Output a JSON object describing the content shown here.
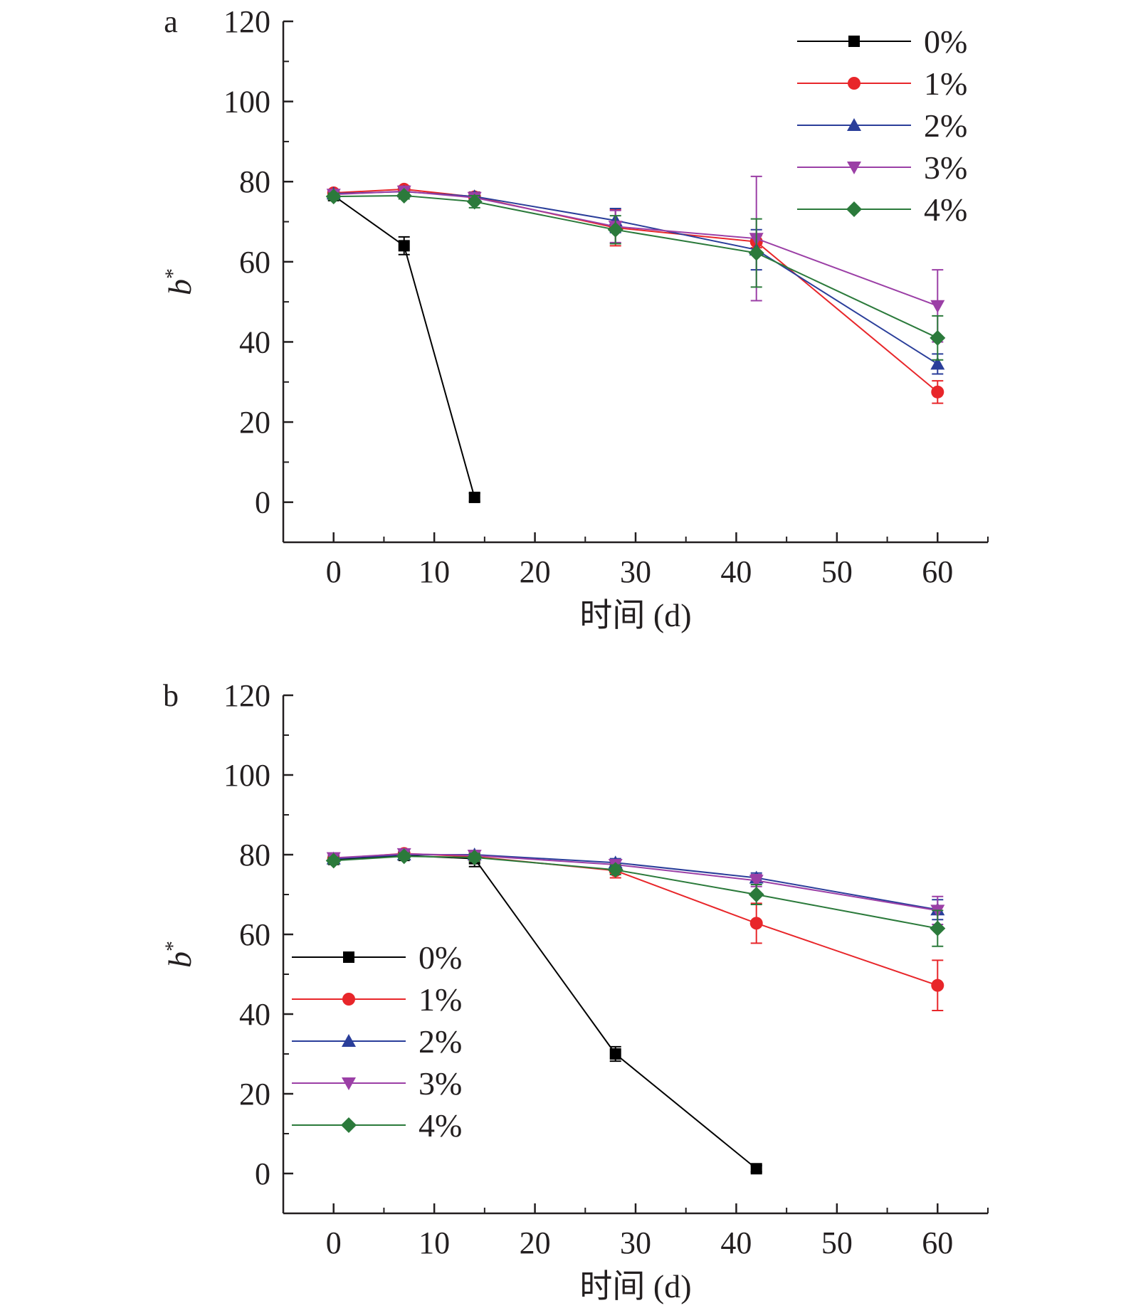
{
  "chart_data": [
    {
      "type": "line",
      "panel_label": "a",
      "xlabel": "时间 (d)",
      "ylabel_main": "b",
      "ylabel_sup": "*",
      "xlim": [
        -5,
        65
      ],
      "ylim": [
        -10,
        120
      ],
      "xticks": [
        0,
        10,
        20,
        30,
        40,
        50,
        60
      ],
      "yticks": [
        0,
        20,
        40,
        60,
        80,
        100,
        120
      ],
      "legend_position": "top-right",
      "series": [
        {
          "name": "0%",
          "color": "#000000",
          "marker": "square",
          "x": [
            0,
            7,
            14
          ],
          "y": [
            76.5,
            64,
            1.2
          ],
          "err": [
            0.8,
            2.2,
            1.0
          ]
        },
        {
          "name": "1%",
          "color": "#e8262a",
          "marker": "circle",
          "x": [
            0,
            7,
            14,
            28,
            42,
            60
          ],
          "y": [
            77.2,
            78.1,
            76.2,
            68.5,
            65.0,
            27.5
          ],
          "err": [
            0.8,
            0.8,
            1.2,
            4.5,
            1.5,
            2.8
          ]
        },
        {
          "name": "2%",
          "color": "#2a3e9a",
          "marker": "triangle-up",
          "x": [
            0,
            7,
            14,
            28,
            42,
            60
          ],
          "y": [
            77.0,
            77.5,
            76.3,
            70.3,
            63.0,
            34.5
          ],
          "err": [
            0.8,
            0.8,
            1.0,
            3.0,
            5.0,
            2.5
          ]
        },
        {
          "name": "3%",
          "color": "#9b3fa6",
          "marker": "triangle-down",
          "x": [
            0,
            7,
            14,
            28,
            42,
            60
          ],
          "y": [
            76.8,
            77.6,
            76.0,
            68.8,
            65.8,
            49.0
          ],
          "err": [
            0.8,
            0.8,
            1.0,
            4.0,
            15.5,
            9.0
          ]
        },
        {
          "name": "4%",
          "color": "#2b7a3b",
          "marker": "diamond",
          "x": [
            0,
            7,
            14,
            28,
            42,
            60
          ],
          "y": [
            76.3,
            76.5,
            75.0,
            68.0,
            62.2,
            41.0
          ],
          "err": [
            0.8,
            0.8,
            1.5,
            3.5,
            8.5,
            5.5
          ]
        }
      ]
    },
    {
      "type": "line",
      "panel_label": "b",
      "xlabel": "时间 (d)",
      "ylabel_main": "b",
      "ylabel_sup": "*",
      "xlim": [
        -5,
        65
      ],
      "ylim": [
        -10,
        120
      ],
      "xticks": [
        0,
        10,
        20,
        30,
        40,
        50,
        60
      ],
      "yticks": [
        0,
        20,
        40,
        60,
        80,
        100,
        120
      ],
      "legend_position": "center-left",
      "series": [
        {
          "name": "0%",
          "color": "#000000",
          "marker": "square",
          "x": [
            0,
            7,
            14,
            28,
            42
          ],
          "y": [
            78.8,
            79.8,
            79.0,
            30.0,
            1.2
          ],
          "err": [
            0.8,
            0.8,
            2.0,
            1.8,
            0.8
          ]
        },
        {
          "name": "1%",
          "color": "#e8262a",
          "marker": "circle",
          "x": [
            0,
            7,
            14,
            28,
            42,
            60
          ],
          "y": [
            79.0,
            80.3,
            79.5,
            76.0,
            62.8,
            47.2
          ],
          "err": [
            0.8,
            0.8,
            1.0,
            1.8,
            5.0,
            6.3
          ]
        },
        {
          "name": "2%",
          "color": "#2a3e9a",
          "marker": "triangle-up",
          "x": [
            0,
            7,
            14,
            28,
            42,
            60
          ],
          "y": [
            79.0,
            80.0,
            80.0,
            78.0,
            74.2,
            66.2
          ],
          "err": [
            0.8,
            0.8,
            1.0,
            1.0,
            1.2,
            2.5
          ]
        },
        {
          "name": "3%",
          "color": "#9b3fa6",
          "marker": "triangle-down",
          "x": [
            0,
            7,
            14,
            28,
            42,
            60
          ],
          "y": [
            79.2,
            80.2,
            79.8,
            77.5,
            73.5,
            66.0
          ],
          "err": [
            0.8,
            0.8,
            1.0,
            1.0,
            1.5,
            3.5
          ]
        },
        {
          "name": "4%",
          "color": "#2b7a3b",
          "marker": "diamond",
          "x": [
            0,
            7,
            14,
            28,
            42,
            60
          ],
          "y": [
            78.5,
            79.6,
            79.3,
            76.2,
            70.0,
            61.5
          ],
          "err": [
            0.8,
            0.8,
            1.0,
            1.2,
            2.5,
            4.5
          ]
        }
      ]
    }
  ]
}
